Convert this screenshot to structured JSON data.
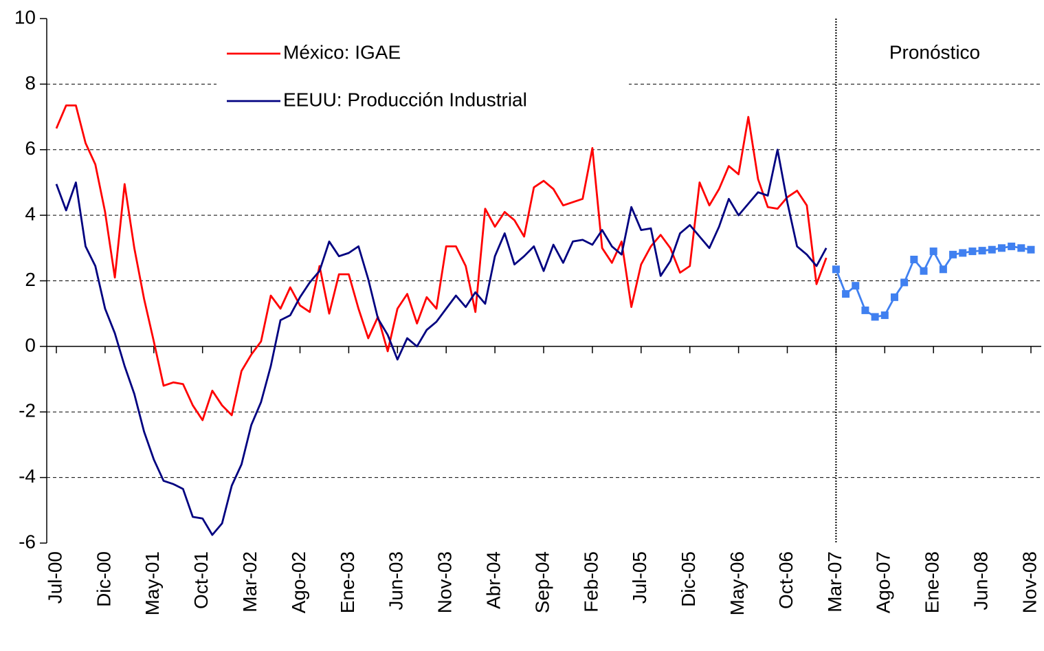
{
  "chart_data": {
    "type": "line",
    "annotations": [
      "Pronóstico"
    ],
    "categories": [
      "Jul-00",
      null,
      null,
      null,
      null,
      "Dic-00",
      null,
      null,
      null,
      null,
      "May-01",
      null,
      null,
      null,
      null,
      "Oct-01",
      null,
      null,
      null,
      null,
      "Mar-02",
      null,
      null,
      null,
      null,
      "Ago-02",
      null,
      null,
      null,
      null,
      "Ene-03",
      null,
      null,
      null,
      null,
      "Jun-03",
      null,
      null,
      null,
      null,
      "Nov-03",
      null,
      null,
      null,
      null,
      "Abr-04",
      null,
      null,
      null,
      null,
      "Sep-04",
      null,
      null,
      null,
      null,
      "Feb-05",
      null,
      null,
      null,
      null,
      "Jul-05",
      null,
      null,
      null,
      null,
      "Dic-05",
      null,
      null,
      null,
      null,
      "May-06",
      null,
      null,
      null,
      null,
      "Oct-06",
      null,
      null,
      null,
      null,
      "Mar-07",
      null,
      null,
      null,
      null,
      "Ago-07",
      null,
      null,
      null,
      null,
      "Ene-08",
      null,
      null,
      null,
      null,
      "Jun-08",
      null,
      null,
      null,
      null,
      "Nov-08"
    ],
    "series": [
      {
        "name": "México: IGAE",
        "color": "#ff0000",
        "values": [
          6.65,
          7.35,
          7.35,
          6.2,
          5.55,
          4.1,
          2.1,
          4.95,
          3.0,
          1.45,
          0.15,
          -1.2,
          -1.1,
          -1.15,
          -1.8,
          -2.25,
          -1.35,
          -1.8,
          -2.1,
          -0.75,
          -0.25,
          0.15,
          1.55,
          1.15,
          1.8,
          1.25,
          1.05,
          2.45,
          1.0,
          2.2,
          2.2,
          1.15,
          0.25,
          0.9,
          -0.15,
          1.15,
          1.6,
          0.7,
          1.5,
          1.15,
          3.05,
          3.05,
          2.45,
          1.05,
          4.2,
          3.65,
          4.1,
          3.85,
          3.35,
          4.85,
          5.05,
          4.8,
          4.3,
          4.4,
          4.5,
          6.05,
          3.0,
          2.55,
          3.2,
          1.2,
          2.5,
          3.05,
          3.4,
          3.0,
          2.25,
          2.45,
          5.0,
          4.3,
          4.8,
          5.5,
          5.25,
          7.0,
          5.1,
          4.25,
          4.2,
          4.55,
          4.75,
          4.3,
          1.9,
          2.7,
          null,
          null,
          null,
          null,
          null,
          null,
          null,
          null,
          null,
          null,
          null,
          null,
          null,
          null,
          null,
          null,
          null,
          null,
          null,
          null,
          null
        ]
      },
      {
        "name": "EEUU: Producción Industrial",
        "color": "#000080",
        "values": [
          4.95,
          4.15,
          5.0,
          3.05,
          2.45,
          1.15,
          0.4,
          -0.6,
          -1.45,
          -2.6,
          -3.45,
          -4.1,
          -4.2,
          -4.35,
          -5.2,
          -5.25,
          -5.75,
          -5.4,
          -4.25,
          -3.6,
          -2.4,
          -1.7,
          -0.6,
          0.8,
          0.95,
          1.5,
          1.95,
          2.3,
          3.2,
          2.75,
          2.85,
          3.05,
          2.05,
          0.85,
          0.35,
          -0.4,
          0.25,
          0.0,
          0.5,
          0.75,
          1.15,
          1.55,
          1.2,
          1.65,
          1.3,
          2.75,
          3.45,
          2.5,
          2.75,
          3.05,
          2.3,
          3.1,
          2.55,
          3.2,
          3.25,
          3.1,
          3.55,
          3.05,
          2.8,
          4.25,
          3.55,
          3.6,
          2.15,
          2.6,
          3.45,
          3.7,
          3.35,
          3.0,
          3.65,
          4.5,
          4.0,
          4.35,
          4.7,
          4.6,
          6.0,
          4.4,
          3.05,
          2.8,
          2.45,
          3.0,
          null,
          null,
          null,
          null,
          null,
          null,
          null,
          null,
          null,
          null,
          null,
          null,
          null,
          null,
          null,
          null,
          null,
          null,
          null,
          null,
          null
        ]
      },
      {
        "color": "#4080f0",
        "marker": "square",
        "values": [
          null,
          null,
          null,
          null,
          null,
          null,
          null,
          null,
          null,
          null,
          null,
          null,
          null,
          null,
          null,
          null,
          null,
          null,
          null,
          null,
          null,
          null,
          null,
          null,
          null,
          null,
          null,
          null,
          null,
          null,
          null,
          null,
          null,
          null,
          null,
          null,
          null,
          null,
          null,
          null,
          null,
          null,
          null,
          null,
          null,
          null,
          null,
          null,
          null,
          null,
          null,
          null,
          null,
          null,
          null,
          null,
          null,
          null,
          null,
          null,
          null,
          null,
          null,
          null,
          null,
          null,
          null,
          null,
          null,
          null,
          null,
          null,
          null,
          null,
          null,
          null,
          null,
          null,
          null,
          null,
          2.35,
          1.6,
          1.85,
          1.1,
          0.9,
          0.95,
          1.5,
          1.95,
          2.65,
          2.3,
          2.9,
          2.35,
          2.8,
          2.85,
          2.9,
          2.92,
          2.95,
          3.0,
          3.05,
          3.0,
          2.95
        ]
      }
    ],
    "ylim": [
      -6,
      10
    ],
    "yticks": [
      -6,
      -4,
      -2,
      0,
      2,
      4,
      6,
      8,
      10
    ],
    "grid": true
  }
}
